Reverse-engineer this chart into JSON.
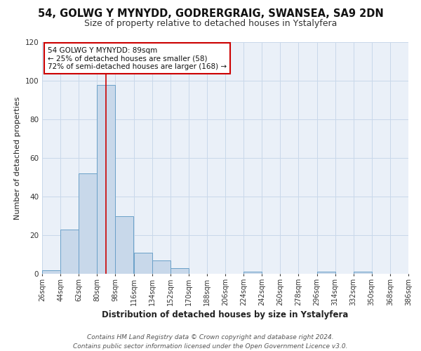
{
  "title": "54, GOLWG Y MYNYDD, GODRERGRAIG, SWANSEA, SA9 2DN",
  "subtitle": "Size of property relative to detached houses in Ystalyfera",
  "xlabel": "Distribution of detached houses by size in Ystalyfera",
  "ylabel": "Number of detached properties",
  "bar_color": "#c8d8ea",
  "bar_edge_color": "#6aa0c8",
  "grid_color": "#c8d8ea",
  "background_color": "#eaf0f8",
  "bin_edges": [
    26,
    44,
    62,
    80,
    98,
    116,
    134,
    152,
    170,
    188,
    206,
    224,
    242,
    260,
    278,
    296,
    314,
    332,
    350,
    368,
    386
  ],
  "bin_values": [
    2,
    23,
    52,
    98,
    30,
    11,
    7,
    3,
    0,
    0,
    0,
    1,
    0,
    0,
    0,
    1,
    0,
    1,
    0,
    0
  ],
  "vline_x": 89,
  "vline_color": "#cc0000",
  "annotation_title": "54 GOLWG Y MYNYDD: 89sqm",
  "annotation_line1": "← 25% of detached houses are smaller (58)",
  "annotation_line2": "72% of semi-detached houses are larger (168) →",
  "annotation_box_color": "#ffffff",
  "annotation_box_edge": "#cc0000",
  "ylim": [
    0,
    120
  ],
  "yticks": [
    0,
    20,
    40,
    60,
    80,
    100,
    120
  ],
  "tick_labels": [
    "26sqm",
    "44sqm",
    "62sqm",
    "80sqm",
    "98sqm",
    "116sqm",
    "134sqm",
    "152sqm",
    "170sqm",
    "188sqm",
    "206sqm",
    "224sqm",
    "242sqm",
    "260sqm",
    "278sqm",
    "296sqm",
    "314sqm",
    "332sqm",
    "350sqm",
    "368sqm",
    "386sqm"
  ],
  "footer_line1": "Contains HM Land Registry data © Crown copyright and database right 2024.",
  "footer_line2": "Contains public sector information licensed under the Open Government Licence v3.0.",
  "title_fontsize": 10.5,
  "subtitle_fontsize": 9,
  "xlabel_fontsize": 8.5,
  "ylabel_fontsize": 8,
  "tick_fontsize": 7,
  "annotation_fontsize": 7.5,
  "footer_fontsize": 6.5
}
